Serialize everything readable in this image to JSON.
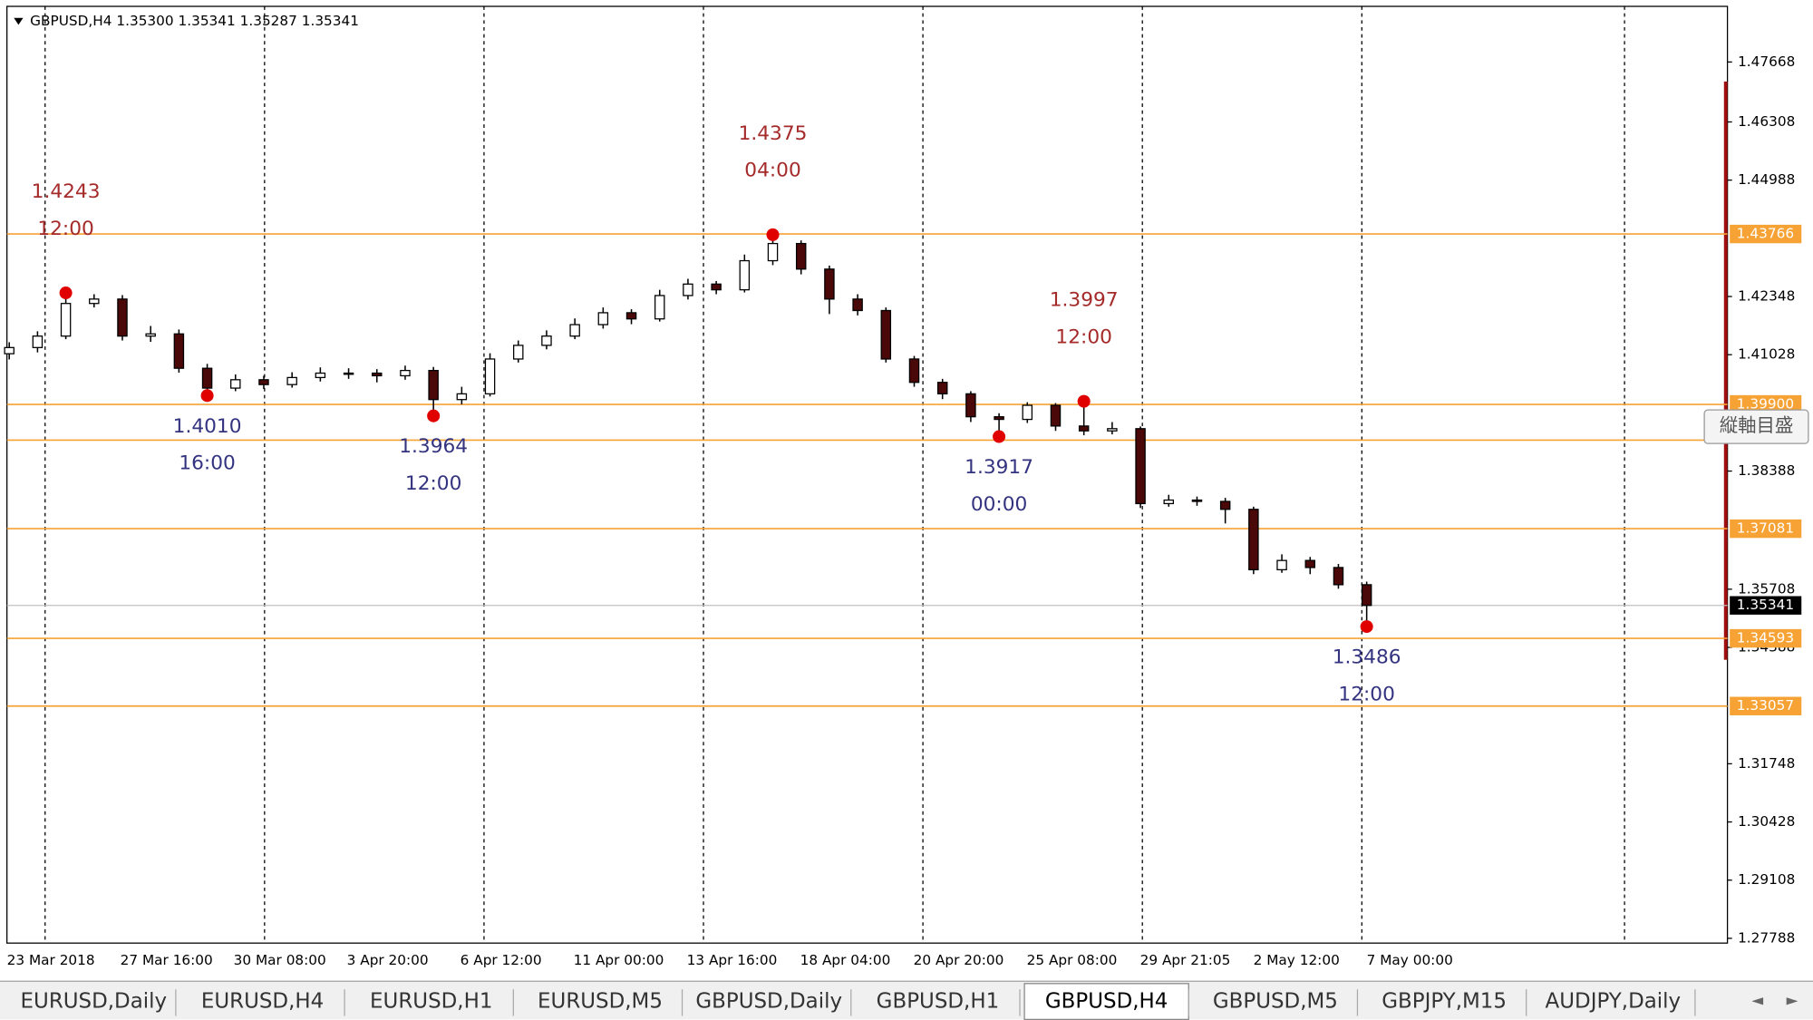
{
  "chart_data": {
    "type": "candlestick",
    "title": "GBPUSD,H4  1.35300 1.35341 1.35287 1.35341",
    "open": [
      1.4105,
      1.4119,
      1.4145,
      1.4219,
      1.4229,
      1.4145,
      1.415,
      1.4072,
      1.4027,
      1.4046,
      1.4035,
      1.4051,
      1.4061,
      1.4061,
      1.4055,
      1.4067,
      1.4001,
      1.4014,
      1.4093,
      1.4124,
      1.4145,
      1.4171,
      1.4198,
      1.4184,
      1.4237,
      1.4263,
      1.425,
      1.4316,
      1.4355,
      1.4297,
      1.4229,
      1.4203,
      1.4093,
      1.404,
      1.4014,
      1.3962,
      1.3956,
      1.3988,
      1.3941,
      1.393,
      1.3935,
      1.3765,
      1.3773,
      1.377,
      1.3752,
      1.3615,
      1.3636,
      1.362,
      1.3581
    ],
    "high": [
      1.4131,
      1.4156,
      1.4243,
      1.424,
      1.4238,
      1.4168,
      1.416,
      1.4082,
      1.4058,
      1.4055,
      1.4063,
      1.4074,
      1.4072,
      1.407,
      1.4078,
      1.4075,
      1.403,
      1.4106,
      1.4135,
      1.4158,
      1.4185,
      1.421,
      1.4206,
      1.425,
      1.4275,
      1.427,
      1.433,
      1.4375,
      1.4362,
      1.4305,
      1.424,
      1.421,
      1.41,
      1.4048,
      1.402,
      1.397,
      1.3995,
      1.3993,
      1.3997,
      1.395,
      1.394,
      1.3785,
      1.3781,
      1.3778,
      1.3758,
      1.365,
      1.3644,
      1.3628,
      1.3588
    ],
    "low": [
      1.4092,
      1.4108,
      1.4138,
      1.421,
      1.4135,
      1.4132,
      1.4062,
      1.401,
      1.402,
      1.4025,
      1.4028,
      1.4042,
      1.4048,
      1.404,
      1.4046,
      1.3964,
      1.399,
      1.4008,
      1.4085,
      1.4115,
      1.4138,
      1.4162,
      1.4172,
      1.4178,
      1.4228,
      1.424,
      1.4244,
      1.4306,
      1.4285,
      1.4195,
      1.4192,
      1.4085,
      1.403,
      1.4002,
      1.395,
      1.3917,
      1.3948,
      1.393,
      1.392,
      1.3922,
      1.3755,
      1.3758,
      1.376,
      1.372,
      1.3605,
      1.3608,
      1.3605,
      1.3572,
      1.3486
    ],
    "close": [
      1.4119,
      1.4145,
      1.4219,
      1.4229,
      1.4145,
      1.415,
      1.4072,
      1.4027,
      1.4046,
      1.4035,
      1.4051,
      1.4061,
      1.4061,
      1.4055,
      1.4067,
      1.4001,
      1.4014,
      1.4093,
      1.4124,
      1.4145,
      1.4171,
      1.4198,
      1.4184,
      1.4237,
      1.4263,
      1.425,
      1.4316,
      1.4355,
      1.4297,
      1.4229,
      1.4203,
      1.4093,
      1.404,
      1.4014,
      1.3962,
      1.3956,
      1.3988,
      1.3941,
      1.393,
      1.3935,
      1.3765,
      1.3773,
      1.377,
      1.3752,
      1.3615,
      1.3636,
      1.362,
      1.3581,
      1.3534
    ],
    "ylim": [
      1.2768,
      1.4893
    ],
    "yticks": [
      1.47668,
      1.46308,
      1.44988,
      1.42348,
      1.41028,
      1.38388,
      1.35708,
      1.34388,
      1.31748,
      1.30428,
      1.29108,
      1.27788
    ],
    "levels": [
      1.43766,
      1.399,
      1.3909,
      1.37081,
      1.34593,
      1.33057
    ],
    "level_labels": [
      "1.43766",
      "1.39900",
      null,
      "1.37081",
      "1.34593",
      "1.33057"
    ],
    "level_color": "#f7a234",
    "current_price": 1.35341,
    "annotations": [
      {
        "price": 1.4243,
        "time": "12:00"
      },
      {
        "price": {
          "value": 1.401,
          "label": "1.4010"
        },
        "time": "16:00"
      },
      {
        "price": 1.3964,
        "time": "12:00"
      },
      {
        "price": 1.4375,
        "time": "04:00"
      },
      {
        "price": 1.3917,
        "time": "00:00"
      },
      {
        "price": 1.3997,
        "time": "12:00"
      },
      {
        "price": 1.3486,
        "time": "12:00"
      }
    ],
    "time_labels": [
      "23 Mar 2018",
      "27 Mar 16:00",
      "30 Mar 08:00",
      "3 Apr 20:00",
      "6 Apr 12:00",
      "11 Apr 00:00",
      "13 Apr 16:00",
      "18 Apr 04:00",
      "20 Apr 20:00",
      "25 Apr 08:00",
      "29 Apr 21:05",
      "2 May 12:00",
      "7 May 00:00"
    ]
  },
  "button": "縦軸目盛",
  "tabs": [
    "EURUSD,Daily",
    "EURUSD,H4",
    "EURUSD,H1",
    "EURUSD,M5",
    "GBPUSD,Daily",
    "GBPUSD,H1",
    "GBPUSD,H4",
    "GBPUSD,M5",
    "GBPJPY,M15",
    "AUDJPY,Daily"
  ],
  "active_tab": "GBPUSD,H4"
}
